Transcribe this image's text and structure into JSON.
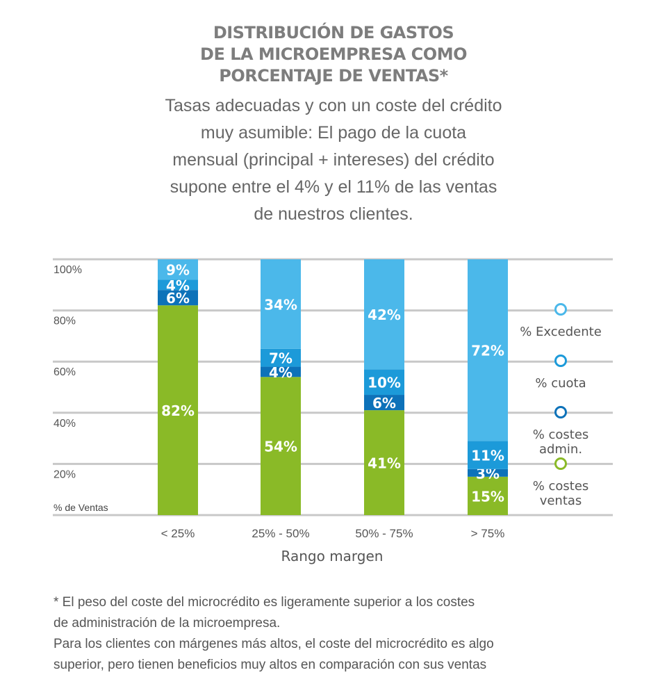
{
  "title_lines": [
    "DISTRIBUCIÓN DE GASTOS",
    "DE LA MICROEMPRESA COMO",
    "PORCENTAJE DE VENTAS*"
  ],
  "subtitle_lines": [
    "Tasas adecuadas y con un coste del crédito",
    "muy asumible: El pago de la cuota",
    "mensual (principal + intereses) del crédito",
    "supone entre el 4% y el 11% de las ventas",
    "de nuestros clientes."
  ],
  "footnote_lines": [
    "* El peso del coste del microcrédito es ligeramente superior a los costes",
    "de administración de la microempresa.",
    "Para los clientes con márgenes más altos, el coste del microcrédito es algo",
    "superior, pero tienen beneficios muy altos en comparación con sus ventas"
  ],
  "chart_data": {
    "type": "bar",
    "stacked": true,
    "categories": [
      "< 25%",
      "25% - 50%",
      "50% - 75%",
      "> 75%"
    ],
    "series": [
      {
        "name": "% costes ventas",
        "values": [
          82,
          54,
          41,
          15
        ],
        "labels": [
          "82%",
          "54%",
          "41%",
          "15%"
        ],
        "color": "#8aba27"
      },
      {
        "name": "% costes admin.",
        "values": [
          6,
          4,
          6,
          3
        ],
        "labels": [
          "6%",
          "4%",
          "6%",
          "3%"
        ],
        "color": "#0d72b9"
      },
      {
        "name": "% cuota",
        "values": [
          4,
          7,
          10,
          11
        ],
        "labels": [
          "4%",
          "7%",
          "10%",
          "11%"
        ],
        "color": "#1c9ad9"
      },
      {
        "name": "% Excedente",
        "values": [
          9,
          34,
          42,
          72
        ],
        "labels": [
          "9%",
          "34%",
          "42%",
          "72%"
        ],
        "color": "#4bb8ea"
      }
    ],
    "ytick_labels": [
      "20%",
      "40%",
      "60%",
      "80%",
      "100%"
    ],
    "ytick_values": [
      20,
      40,
      60,
      80,
      100
    ],
    "ylabel": "% de Ventas",
    "xlabel": "Rango margen",
    "ylim": [
      0,
      100
    ],
    "grid": true,
    "legend": [
      {
        "lines": [
          "% Excedente"
        ],
        "color": "#4bb8ea"
      },
      {
        "lines": [
          "% cuota"
        ],
        "color": "#1c9ad9"
      },
      {
        "lines": [
          "% costes",
          "admin."
        ],
        "color": "#0d72b9"
      },
      {
        "lines": [
          "% costes",
          "ventas"
        ],
        "color": "#8aba27"
      }
    ],
    "legend_position": "right"
  }
}
